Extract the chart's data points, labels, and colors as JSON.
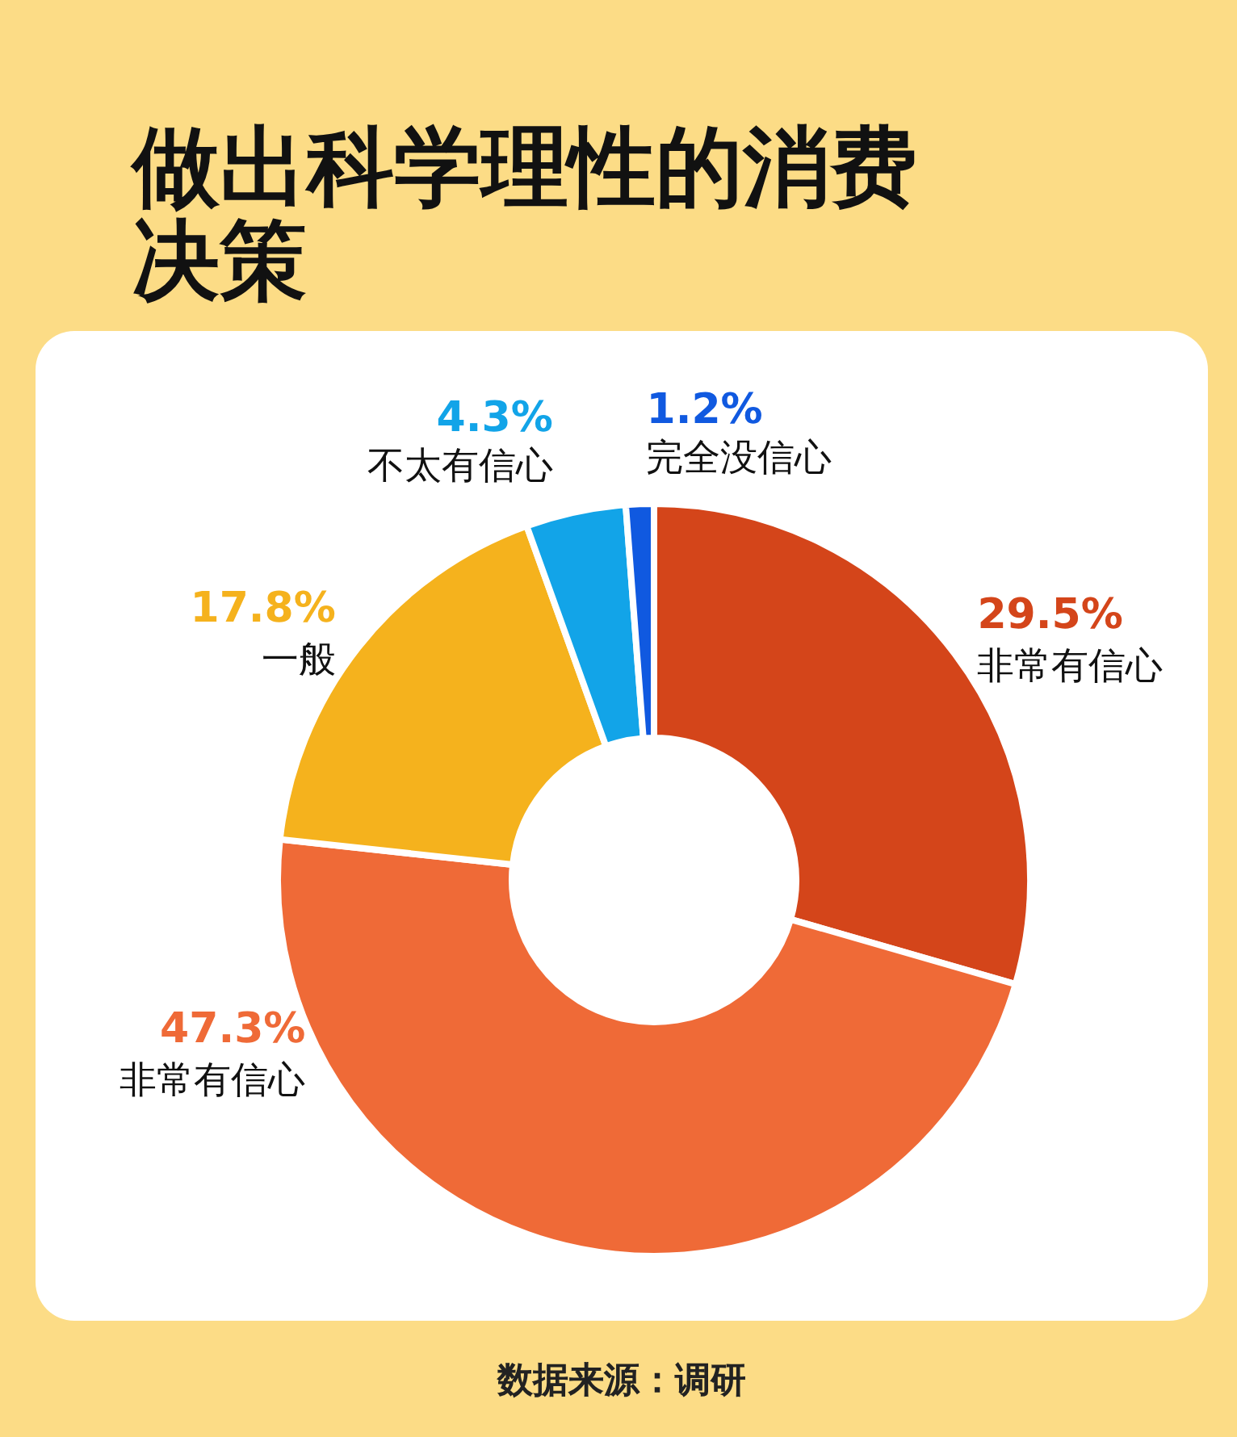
{
  "chart_data": {
    "type": "donut",
    "title": "做出科学理性的消费决策",
    "categories": [
      "非常有信心",
      "非常有信心",
      "一般",
      "不太有信心",
      "完全没信心"
    ],
    "values": [
      29.5,
      47.3,
      17.8,
      4.3,
      1.2
    ],
    "colors": [
      "#d4451a",
      "#ef6a37",
      "#f5b21d",
      "#12a4e8",
      "#1059e0"
    ],
    "value_labels": [
      "29.5%",
      "47.3%",
      "17.8%",
      "4.3%",
      "1.2%"
    ],
    "annotations": [
      "数据来源：调研"
    ]
  }
}
